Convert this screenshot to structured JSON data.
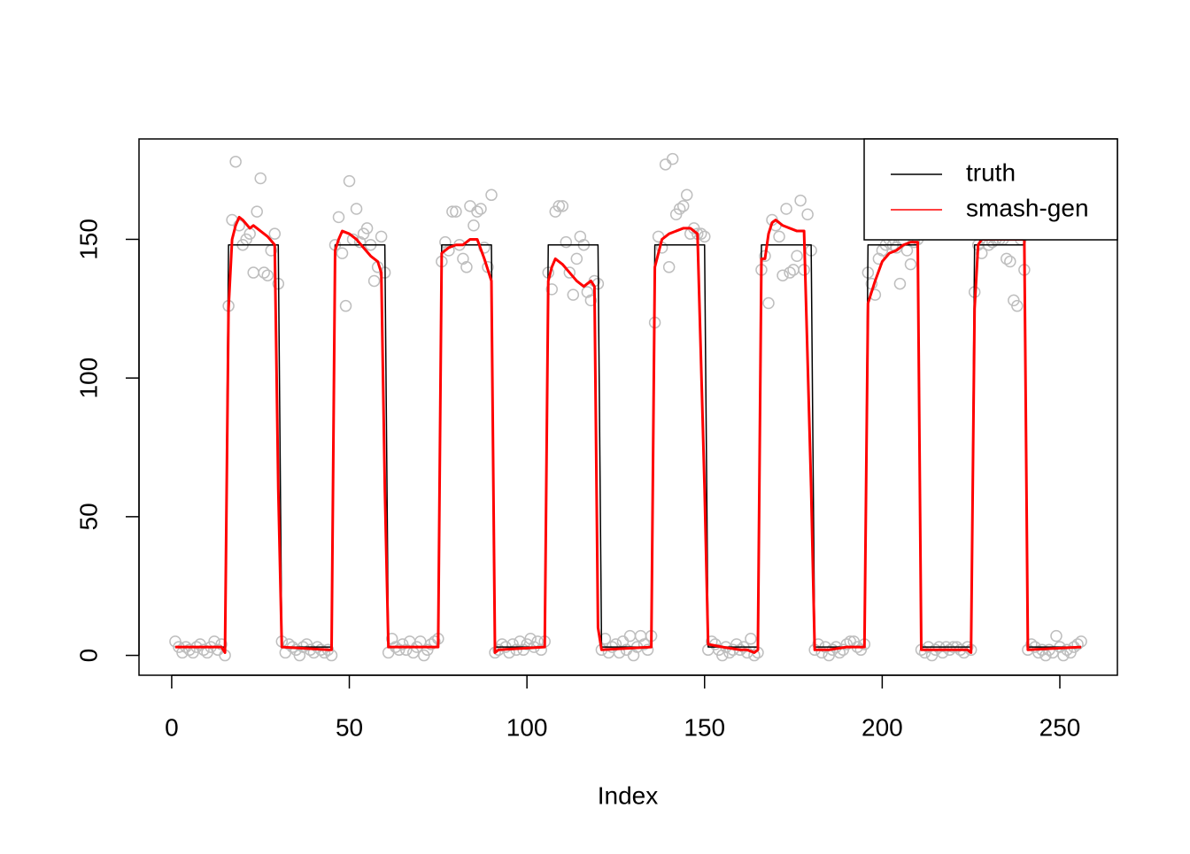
{
  "chart_data": {
    "type": "line",
    "xlabel": "Index",
    "xlim": [
      -9.2,
      266.2
    ],
    "ylim": [
      -7.16,
      186.2
    ],
    "xticks": [
      0,
      50,
      100,
      150,
      200,
      250
    ],
    "yticks": [
      0,
      50,
      100,
      150
    ],
    "legend": "top-right",
    "points": {
      "color": "#bebebe",
      "x": [
        1,
        2,
        3,
        4,
        5,
        6,
        7,
        8,
        9,
        10,
        11,
        12,
        13,
        14,
        15,
        16,
        17,
        18,
        19,
        20,
        21,
        22,
        23,
        24,
        25,
        26,
        27,
        28,
        29,
        30,
        31,
        32,
        33,
        34,
        35,
        36,
        37,
        38,
        39,
        40,
        41,
        42,
        43,
        44,
        45,
        46,
        47,
        48,
        49,
        50,
        51,
        52,
        53,
        54,
        55,
        56,
        57,
        58,
        59,
        60,
        61,
        62,
        63,
        64,
        65,
        66,
        67,
        68,
        69,
        70,
        71,
        72,
        73,
        74,
        75,
        76,
        77,
        78,
        79,
        80,
        81,
        82,
        83,
        84,
        85,
        86,
        87,
        88,
        89,
        90,
        91,
        92,
        93,
        94,
        95,
        96,
        97,
        98,
        99,
        100,
        101,
        102,
        103,
        104,
        105,
        106,
        107,
        108,
        109,
        110,
        111,
        112,
        113,
        114,
        115,
        116,
        117,
        118,
        119,
        120,
        121,
        122,
        123,
        124,
        125,
        126,
        127,
        128,
        129,
        130,
        131,
        132,
        133,
        134,
        135,
        136,
        137,
        138,
        139,
        140,
        141,
        142,
        143,
        144,
        145,
        146,
        147,
        148,
        149,
        150,
        151,
        152,
        153,
        154,
        155,
        156,
        157,
        158,
        159,
        160,
        161,
        162,
        163,
        164,
        165,
        166,
        167,
        168,
        169,
        170,
        171,
        172,
        173,
        174,
        175,
        176,
        177,
        178,
        179,
        180,
        181,
        182,
        183,
        184,
        185,
        186,
        187,
        188,
        189,
        190,
        191,
        192,
        193,
        194,
        195,
        196,
        197,
        198,
        199,
        200,
        201,
        202,
        203,
        204,
        205,
        206,
        207,
        208,
        209,
        210,
        211,
        212,
        213,
        214,
        215,
        216,
        217,
        218,
        219,
        220,
        221,
        222,
        223,
        224,
        225,
        226,
        227,
        228,
        229,
        230,
        231,
        232,
        233,
        234,
        235,
        236,
        237,
        238,
        239,
        240,
        241,
        242,
        243,
        244,
        245,
        246,
        247,
        248,
        249,
        250,
        251,
        252,
        253,
        254,
        255,
        256
      ],
      "values": [
        5,
        3,
        1,
        3,
        2,
        1,
        3,
        4,
        2,
        1,
        3,
        5,
        2,
        4,
        0,
        126,
        157,
        178,
        155,
        148,
        150,
        152,
        138,
        160,
        172,
        138,
        137,
        146,
        152,
        134,
        5,
        1,
        4,
        3,
        2,
        0,
        3,
        4,
        2,
        1,
        3,
        2,
        1,
        2,
        0,
        148,
        158,
        145,
        126,
        171,
        150,
        161,
        149,
        152,
        154,
        148,
        135,
        140,
        151,
        138,
        1,
        6,
        3,
        2,
        4,
        2,
        5,
        1,
        3,
        5,
        0,
        2,
        4,
        5,
        6,
        142,
        149,
        146,
        160,
        160,
        148,
        143,
        140,
        162,
        155,
        160,
        161,
        147,
        140,
        166,
        1,
        2,
        4,
        3,
        1,
        4,
        2,
        5,
        2,
        4,
        6,
        3,
        5,
        2,
        5,
        138,
        132,
        160,
        162,
        162,
        149,
        138,
        130,
        143,
        151,
        148,
        131,
        128,
        135,
        134,
        2,
        6,
        1,
        3,
        4,
        1,
        5,
        2,
        7,
        0,
        3,
        7,
        4,
        2,
        7,
        120,
        151,
        147,
        177,
        140,
        179,
        159,
        161,
        162,
        166,
        152,
        154,
        152,
        152,
        151,
        2,
        5,
        4,
        2,
        0,
        3,
        1,
        2,
        4,
        2,
        3,
        1,
        6,
        0,
        1,
        139,
        144,
        127,
        157,
        155,
        151,
        137,
        161,
        138,
        139,
        144,
        164,
        139,
        159,
        146,
        2,
        4,
        1,
        3,
        0,
        2,
        3,
        1,
        2,
        4,
        5,
        5,
        3,
        2,
        4,
        138,
        134,
        130,
        143,
        146,
        148,
        150,
        148,
        147,
        134,
        150,
        146,
        141,
        149,
        150,
        2,
        1,
        3,
        0,
        2,
        3,
        1,
        3,
        2,
        3,
        3,
        2,
        1,
        3,
        2,
        131,
        148,
        145,
        150,
        148,
        149,
        150,
        150,
        150,
        143,
        142,
        128,
        126,
        150,
        139,
        2,
        4,
        3,
        1,
        2,
        0,
        2,
        1,
        7,
        3,
        0,
        2,
        1,
        3,
        4,
        5
      ]
    },
    "series": [
      {
        "name": "truth",
        "color": "#000000",
        "x": [
          1,
          15,
          16,
          30,
          31,
          45,
          46,
          60,
          61,
          75,
          76,
          90,
          91,
          105,
          106,
          120,
          121,
          135,
          136,
          150,
          151,
          165,
          166,
          180,
          181,
          195,
          196,
          210,
          211,
          225,
          226,
          240,
          241,
          256
        ],
        "values": [
          3,
          3,
          148,
          148,
          3,
          3,
          148,
          148,
          3,
          3,
          148,
          148,
          3,
          3,
          148,
          148,
          3,
          3,
          148,
          148,
          3,
          3,
          148,
          148,
          3,
          3,
          148,
          148,
          3,
          3,
          148,
          148,
          3,
          3
        ]
      },
      {
        "name": "smash-gen",
        "color": "#ff0000",
        "x": [
          1,
          14,
          15,
          16,
          17,
          18,
          19,
          20,
          22,
          23,
          25,
          27,
          29,
          30,
          31,
          44,
          45,
          46,
          47,
          48,
          50,
          52,
          54,
          56,
          58,
          59,
          60,
          61,
          75,
          76,
          78,
          80,
          82,
          84,
          86,
          88,
          90,
          91,
          92,
          105,
          106,
          107,
          108,
          110,
          112,
          114,
          116,
          118,
          119,
          120,
          121,
          135,
          136,
          138,
          140,
          142,
          144,
          146,
          148,
          150,
          151,
          155,
          160,
          162,
          164,
          165,
          166,
          167,
          168,
          169,
          170,
          172,
          174,
          176,
          178,
          180,
          181,
          185,
          190,
          195,
          196,
          198,
          200,
          202,
          204,
          206,
          208,
          210,
          211,
          222,
          224,
          225,
          226,
          227,
          228,
          240,
          241,
          256
        ],
        "values": [
          3,
          3,
          1,
          125,
          150,
          155,
          158,
          157,
          154,
          155,
          153,
          151,
          148,
          60,
          3,
          2,
          2,
          146,
          150,
          153,
          152,
          150,
          147,
          144,
          142,
          138,
          60,
          3,
          3,
          145,
          147,
          148,
          148,
          150,
          150,
          143,
          135,
          1,
          2,
          3,
          135,
          140,
          143,
          141,
          138,
          135,
          133,
          135,
          133,
          10,
          2,
          3,
          140,
          150,
          152,
          153,
          154,
          154,
          152,
          60,
          4,
          3,
          2,
          2,
          1,
          2,
          143,
          143,
          152,
          156,
          157,
          155,
          154,
          153,
          153,
          60,
          2,
          2,
          3,
          3,
          127,
          135,
          142,
          145,
          146,
          148,
          149,
          149,
          2,
          2,
          2,
          1,
          125,
          148,
          150,
          150,
          2,
          3
        ]
      }
    ]
  }
}
